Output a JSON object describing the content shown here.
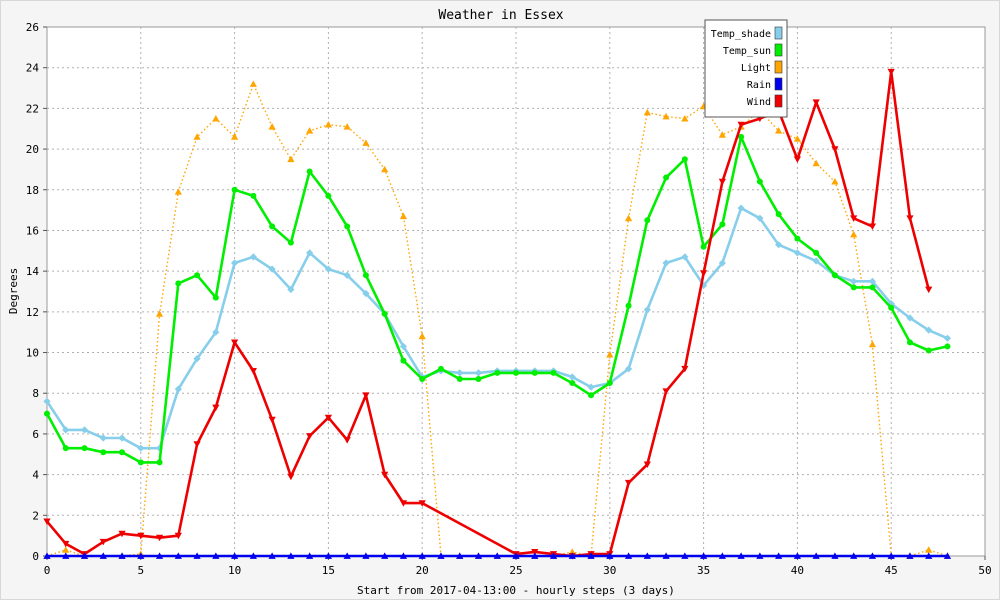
{
  "chart_data": {
    "type": "line",
    "title": "Weather in Essex",
    "xlabel": "Start from 2017-04-13:00 - hourly steps (3 days)",
    "ylabel": "Degrees",
    "xlim": [
      0,
      50
    ],
    "ylim": [
      0,
      26
    ],
    "x_ticks": [
      0,
      5,
      10,
      15,
      20,
      25,
      30,
      35,
      40,
      45,
      50
    ],
    "y_ticks": [
      0,
      2,
      4,
      6,
      8,
      10,
      12,
      14,
      16,
      18,
      20,
      22,
      24,
      26
    ],
    "grid": true,
    "legend_position": "top-right",
    "series": [
      {
        "name": "Temp_shade",
        "color": "#87ceeb",
        "marker": "diamond",
        "line": "solid",
        "x": [
          0,
          1,
          2,
          3,
          4,
          5,
          6,
          7,
          8,
          9,
          10,
          11,
          12,
          13,
          14,
          15,
          16,
          17,
          18,
          19,
          20,
          21,
          22,
          23,
          24,
          25,
          26,
          27,
          28,
          29,
          30,
          31,
          32,
          33,
          34,
          35,
          36,
          37,
          38,
          39,
          40,
          41,
          42,
          43,
          44,
          45,
          46,
          47,
          48
        ],
        "values": [
          7.6,
          6.2,
          6.2,
          5.8,
          5.8,
          5.3,
          5.3,
          8.2,
          9.7,
          11.0,
          14.4,
          14.7,
          14.1,
          13.1,
          14.9,
          14.1,
          13.8,
          12.9,
          11.9,
          10.3,
          8.8,
          9.1,
          9.0,
          9.0,
          9.1,
          9.1,
          9.1,
          9.1,
          8.8,
          8.3,
          8.5,
          9.2,
          12.1,
          14.4,
          14.7,
          13.3,
          14.4,
          17.1,
          16.6,
          15.3,
          14.9,
          14.5,
          13.8,
          13.5,
          13.5,
          12.4,
          11.7,
          11.1,
          10.7
        ]
      },
      {
        "name": "Temp_sun",
        "color": "#00ee00",
        "marker": "circle",
        "line": "solid",
        "x": [
          0,
          1,
          2,
          3,
          4,
          5,
          6,
          7,
          8,
          9,
          10,
          11,
          12,
          13,
          14,
          15,
          16,
          17,
          18,
          19,
          20,
          21,
          22,
          23,
          24,
          25,
          26,
          27,
          28,
          29,
          30,
          31,
          32,
          33,
          34,
          35,
          36,
          37,
          38,
          39,
          40,
          41,
          42,
          43,
          44,
          45,
          46,
          47,
          48
        ],
        "values": [
          7.0,
          5.3,
          5.3,
          5.1,
          5.1,
          4.6,
          4.6,
          13.4,
          13.8,
          12.7,
          18.0,
          17.7,
          16.2,
          15.4,
          18.9,
          17.7,
          16.2,
          13.8,
          11.9,
          9.6,
          8.7,
          9.2,
          8.7,
          8.7,
          9.0,
          9.0,
          9.0,
          9.0,
          8.5,
          7.9,
          8.5,
          12.3,
          16.5,
          18.6,
          19.5,
          15.2,
          16.3,
          20.6,
          18.4,
          16.8,
          15.6,
          14.9,
          13.8,
          13.2,
          13.2,
          12.2,
          10.5,
          10.1,
          10.3
        ]
      },
      {
        "name": "Light",
        "color": "#ffa500",
        "marker": "triangle-up",
        "line": "dotted",
        "x": [
          0,
          1,
          2,
          3,
          4,
          5,
          6,
          7,
          8,
          9,
          10,
          11,
          12,
          13,
          14,
          15,
          16,
          17,
          18,
          19,
          20,
          21,
          22,
          23,
          24,
          25,
          26,
          27,
          28,
          29,
          30,
          31,
          32,
          33,
          34,
          35,
          36,
          37,
          38,
          39,
          40,
          41,
          42,
          43,
          44,
          45,
          46,
          47,
          48
        ],
        "values": [
          0.0,
          0.3,
          0.0,
          0.0,
          0.0,
          0.1,
          11.9,
          17.9,
          20.6,
          21.5,
          20.6,
          23.2,
          21.1,
          19.5,
          20.9,
          21.2,
          21.1,
          20.3,
          19.0,
          16.7,
          10.8,
          0.0,
          0.0,
          0.0,
          0.0,
          0.0,
          0.0,
          0.0,
          0.2,
          0.0,
          9.9,
          16.6,
          21.8,
          21.6,
          21.5,
          22.1,
          20.7,
          21.1,
          21.9,
          20.9,
          20.5,
          19.3,
          18.4,
          15.8,
          10.4,
          0.0,
          0.0,
          0.3,
          0.0
        ]
      },
      {
        "name": "Rain",
        "color": "#0000ee",
        "marker": "triangle-up",
        "line": "solid",
        "x": [
          0,
          1,
          2,
          3,
          4,
          5,
          6,
          7,
          8,
          9,
          10,
          11,
          12,
          13,
          14,
          15,
          16,
          17,
          18,
          19,
          20,
          21,
          22,
          23,
          24,
          25,
          26,
          27,
          28,
          29,
          30,
          31,
          32,
          33,
          34,
          35,
          36,
          37,
          38,
          39,
          40,
          41,
          42,
          43,
          44,
          45,
          46,
          47,
          48
        ],
        "values": [
          0,
          0,
          0,
          0,
          0,
          0,
          0,
          0,
          0,
          0,
          0,
          0,
          0,
          0,
          0,
          0,
          0,
          0,
          0,
          0,
          0,
          0,
          0,
          0,
          0,
          0,
          0,
          0,
          0,
          0,
          0,
          0,
          0,
          0,
          0,
          0,
          0,
          0,
          0,
          0,
          0,
          0,
          0,
          0,
          0,
          0,
          0,
          0,
          0
        ]
      },
      {
        "name": "Wind",
        "color": "#ee0000",
        "marker": "triangle-down",
        "line": "solid",
        "x": [
          0,
          1,
          2,
          3,
          4,
          5,
          6,
          7,
          8,
          9,
          10,
          11,
          12,
          13,
          14,
          15,
          16,
          17,
          18,
          19,
          20,
          25,
          26,
          27,
          28,
          29,
          30,
          31,
          32,
          33,
          34,
          35,
          36,
          37,
          38,
          39,
          40,
          41,
          42,
          43,
          44,
          45,
          46,
          47
        ],
        "values": [
          1.7,
          0.6,
          0.1,
          0.7,
          1.1,
          1.0,
          0.9,
          1.0,
          5.5,
          7.3,
          10.5,
          9.1,
          6.7,
          3.9,
          5.9,
          6.8,
          5.7,
          7.9,
          4.0,
          2.6,
          2.6,
          0.1,
          0.2,
          0.1,
          0.0,
          0.1,
          0.1,
          3.6,
          4.5,
          8.1,
          9.2,
          13.9,
          18.4,
          21.2,
          21.5,
          21.9,
          19.5,
          22.3,
          20.0,
          16.6,
          16.2,
          23.8,
          16.6,
          13.1
        ]
      }
    ]
  }
}
